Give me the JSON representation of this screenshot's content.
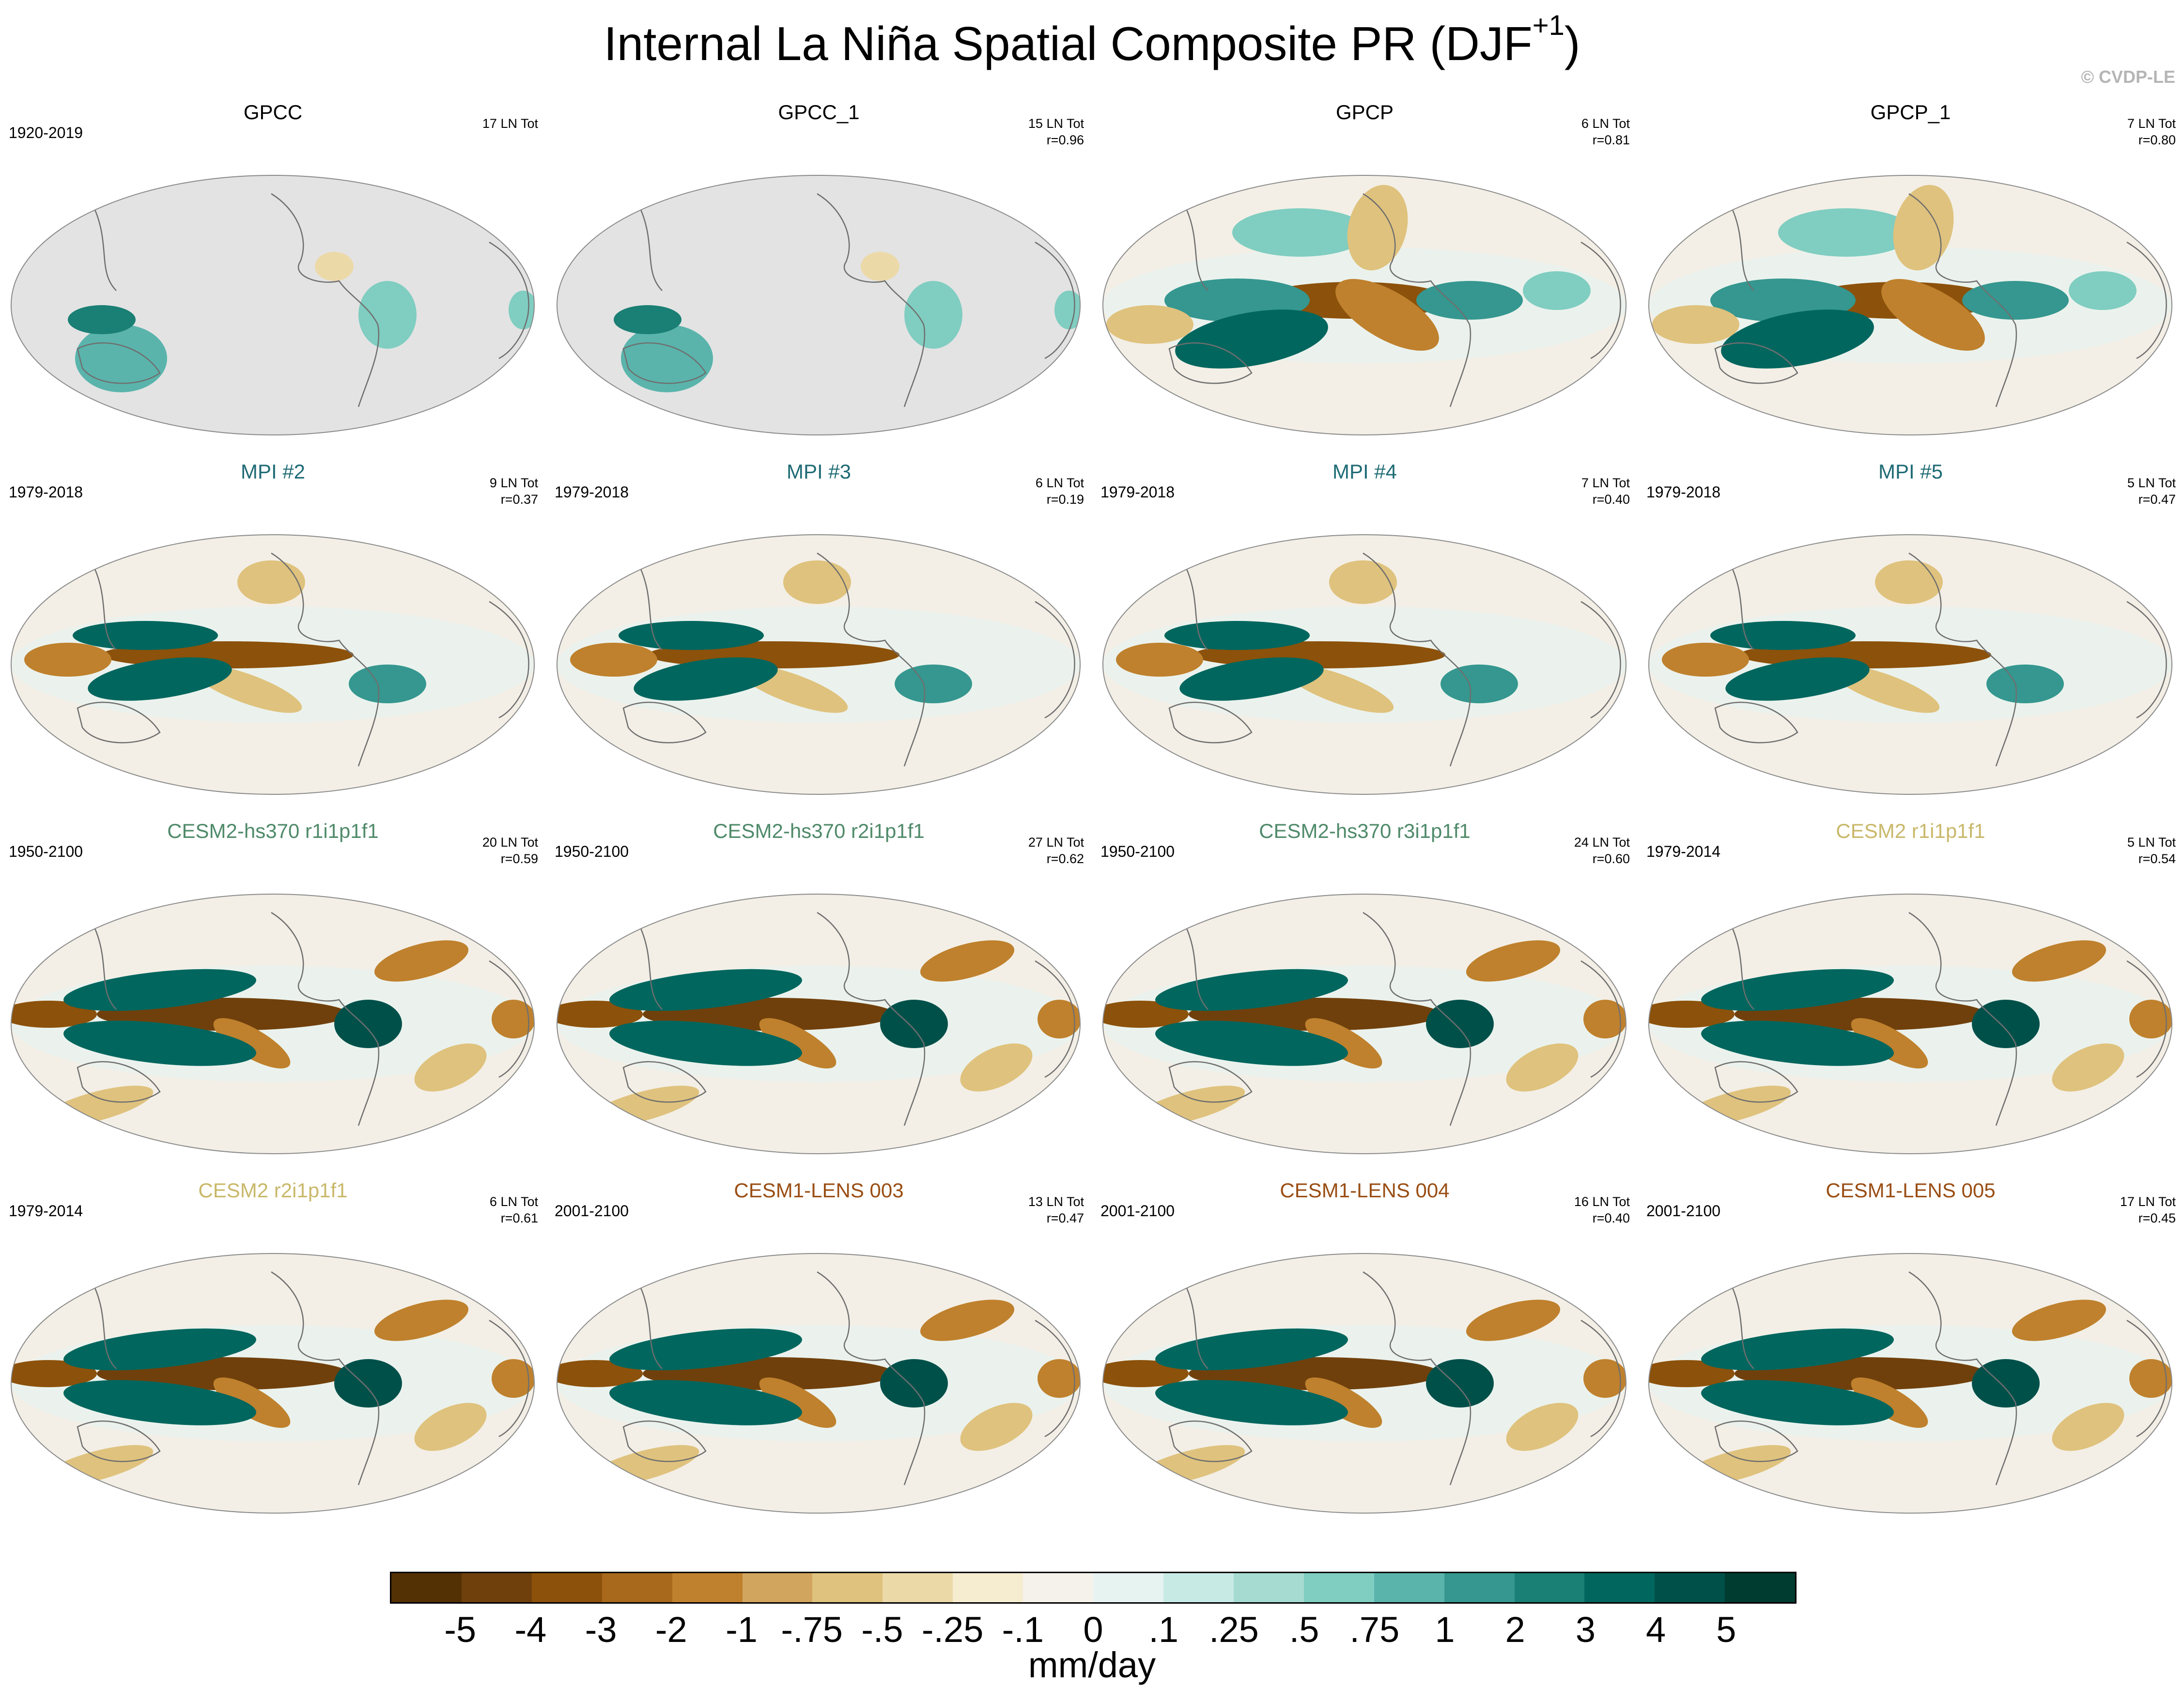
{
  "figure": {
    "title_main": "Internal La Niña Spatial Composite PR (DJF",
    "title_sup": "+1",
    "title_close": ")",
    "copyright": "© CVDP-LE",
    "units": "mm/day"
  },
  "colors": {
    "ocean_bg": "#f3efe6",
    "land_gray": "#e3e3e3",
    "coast": "#6f6f6f",
    "obs_title": "#000000",
    "mpi_title": "#1f6b75",
    "cesm2_hs370_title": "#4f8a6a",
    "cesm2_title": "#c9b86a",
    "cesm1_title": "#9a4e14"
  },
  "panels": [
    {
      "title": "GPCC",
      "period": "1920-2019",
      "count": "17 LN Tot",
      "corr": "",
      "group": "obs",
      "pattern": "land"
    },
    {
      "title": "GPCC_1",
      "period": "",
      "count": "15 LN Tot",
      "corr": "r=0.96",
      "group": "obs",
      "pattern": "land"
    },
    {
      "title": "GPCP",
      "period": "",
      "count": "6 LN Tot",
      "corr": "r=0.81",
      "group": "obs",
      "pattern": "obs"
    },
    {
      "title": "GPCP_1",
      "period": "",
      "count": "7 LN Tot",
      "corr": "r=0.80",
      "group": "obs",
      "pattern": "obs"
    },
    {
      "title": "MPI #2",
      "period": "1979-2018",
      "count": "9 LN Tot",
      "corr": "r=0.37",
      "group": "mpi",
      "pattern": "mpi"
    },
    {
      "title": "MPI #3",
      "period": "1979-2018",
      "count": "6 LN Tot",
      "corr": "r=0.19",
      "group": "mpi",
      "pattern": "mpi"
    },
    {
      "title": "MPI #4",
      "period": "1979-2018",
      "count": "7 LN Tot",
      "corr": "r=0.40",
      "group": "mpi",
      "pattern": "mpi"
    },
    {
      "title": "MPI #5",
      "period": "1979-2018",
      "count": "5 LN Tot",
      "corr": "r=0.47",
      "group": "mpi",
      "pattern": "mpi"
    },
    {
      "title": "CESM2-hs370 r1i1p1f1",
      "period": "1950-2100",
      "count": "20 LN Tot",
      "corr": "r=0.59",
      "group": "cesm2_hs370",
      "pattern": "strong"
    },
    {
      "title": "CESM2-hs370 r2i1p1f1",
      "period": "1950-2100",
      "count": "27 LN Tot",
      "corr": "r=0.62",
      "group": "cesm2_hs370",
      "pattern": "strong"
    },
    {
      "title": "CESM2-hs370 r3i1p1f1",
      "period": "1950-2100",
      "count": "24 LN Tot",
      "corr": "r=0.60",
      "group": "cesm2_hs370",
      "pattern": "strong"
    },
    {
      "title": "CESM2 r1i1p1f1",
      "period": "1979-2014",
      "count": "5 LN Tot",
      "corr": "r=0.54",
      "group": "cesm2",
      "pattern": "strong"
    },
    {
      "title": "CESM2 r2i1p1f1",
      "period": "1979-2014",
      "count": "6 LN Tot",
      "corr": "r=0.61",
      "group": "cesm2",
      "pattern": "strong"
    },
    {
      "title": "CESM1-LENS 003",
      "period": "2001-2100",
      "count": "13 LN Tot",
      "corr": "r=0.47",
      "group": "cesm1",
      "pattern": "strong"
    },
    {
      "title": "CESM1-LENS 004",
      "period": "2001-2100",
      "count": "16 LN Tot",
      "corr": "r=0.40",
      "group": "cesm1",
      "pattern": "strong"
    },
    {
      "title": "CESM1-LENS 005",
      "period": "2001-2100",
      "count": "17 LN Tot",
      "corr": "r=0.45",
      "group": "cesm1",
      "pattern": "strong"
    }
  ],
  "colorbar": {
    "colors": [
      "#543005",
      "#70400c",
      "#8c510a",
      "#a8691d",
      "#bf812d",
      "#d2a55e",
      "#dfc27d",
      "#ecd9a8",
      "#f6ecd0",
      "#f5f2ec",
      "#e6f3f1",
      "#c7eae5",
      "#a5dbd1",
      "#80cdc1",
      "#5ab4ac",
      "#35978f",
      "#1a7f74",
      "#01665e",
      "#00504a",
      "#003c30"
    ],
    "tick_labels": [
      "-5",
      "-4",
      "-3",
      "-2",
      "-1",
      "-.75",
      "-.5",
      "-.25",
      "-.1",
      "0",
      ".1",
      ".25",
      ".5",
      ".75",
      "1",
      "2",
      "3",
      "4",
      "5"
    ]
  }
}
